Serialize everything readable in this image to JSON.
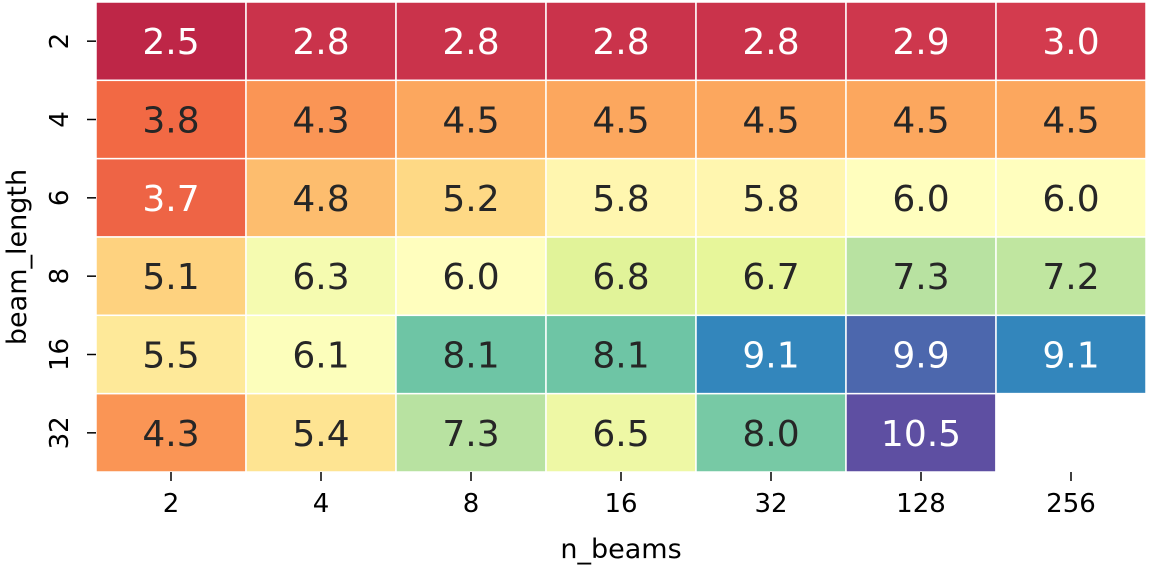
{
  "chart_data": {
    "type": "heatmap",
    "xlabel": "n_beams",
    "ylabel": "beam_length",
    "x_categories": [
      "2",
      "4",
      "8",
      "16",
      "32",
      "128",
      "256"
    ],
    "y_categories": [
      "2",
      "4",
      "6",
      "8",
      "16",
      "32"
    ],
    "values": [
      [
        2.5,
        2.8,
        2.8,
        2.8,
        2.8,
        2.9,
        3.0
      ],
      [
        3.8,
        4.3,
        4.5,
        4.5,
        4.5,
        4.5,
        4.5
      ],
      [
        3.7,
        4.8,
        5.2,
        5.8,
        5.8,
        6.0,
        6.0
      ],
      [
        5.1,
        6.3,
        6.0,
        6.8,
        6.7,
        7.3,
        7.2
      ],
      [
        5.5,
        6.1,
        8.1,
        8.1,
        9.1,
        9.9,
        9.1
      ],
      [
        4.3,
        5.4,
        7.3,
        6.5,
        8.0,
        10.5,
        null
      ]
    ],
    "value_format": "one-decimal",
    "colormap": "Spectral",
    "color_range": [
      2.5,
      10.5
    ],
    "colorbar": false,
    "grid": false,
    "cell_border_color": "#ffffff",
    "missing_cell_color": "#ffffff"
  }
}
